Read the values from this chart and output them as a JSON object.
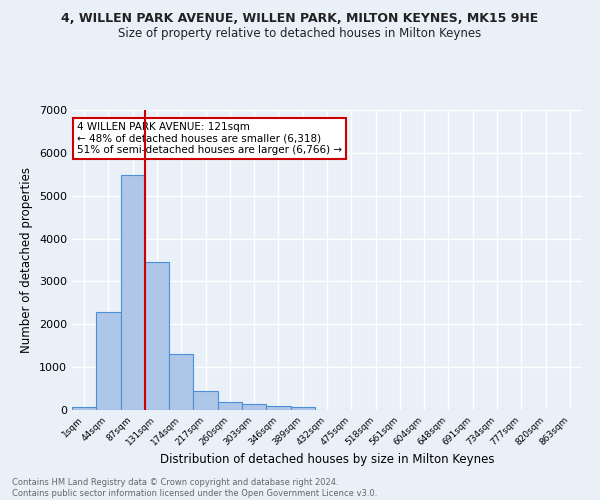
{
  "title": "4, WILLEN PARK AVENUE, WILLEN PARK, MILTON KEYNES, MK15 9HE",
  "subtitle": "Size of property relative to detached houses in Milton Keynes",
  "xlabel": "Distribution of detached houses by size in Milton Keynes",
  "ylabel": "Number of detached properties",
  "bar_values": [
    75,
    2280,
    5480,
    3450,
    1310,
    450,
    185,
    130,
    95,
    60,
    0,
    0,
    0,
    0,
    0,
    0,
    0,
    0,
    0,
    0,
    0
  ],
  "bar_labels": [
    "1sqm",
    "44sqm",
    "87sqm",
    "131sqm",
    "174sqm",
    "217sqm",
    "260sqm",
    "303sqm",
    "346sqm",
    "389sqm",
    "432sqm",
    "475sqm",
    "518sqm",
    "561sqm",
    "604sqm",
    "648sqm",
    "691sqm",
    "734sqm",
    "777sqm",
    "820sqm",
    "863sqm"
  ],
  "bar_color": "#aec6e8",
  "bar_edge_color": "#4a90d9",
  "bg_color": "#eaf0f8",
  "grid_color": "#ffffff",
  "vline_x": 2.5,
  "vline_color": "#cc0000",
  "annotation_text": "4 WILLEN PARK AVENUE: 121sqm\n← 48% of detached houses are smaller (6,318)\n51% of semi-detached houses are larger (6,766) →",
  "annotation_box_color": "#ffffff",
  "annotation_box_edge": "#cc0000",
  "ylim": [
    0,
    7000
  ],
  "yticks": [
    0,
    1000,
    2000,
    3000,
    4000,
    5000,
    6000,
    7000
  ],
  "footer_line1": "Contains HM Land Registry data © Crown copyright and database right 2024.",
  "footer_line2": "Contains public sector information licensed under the Open Government Licence v3.0."
}
